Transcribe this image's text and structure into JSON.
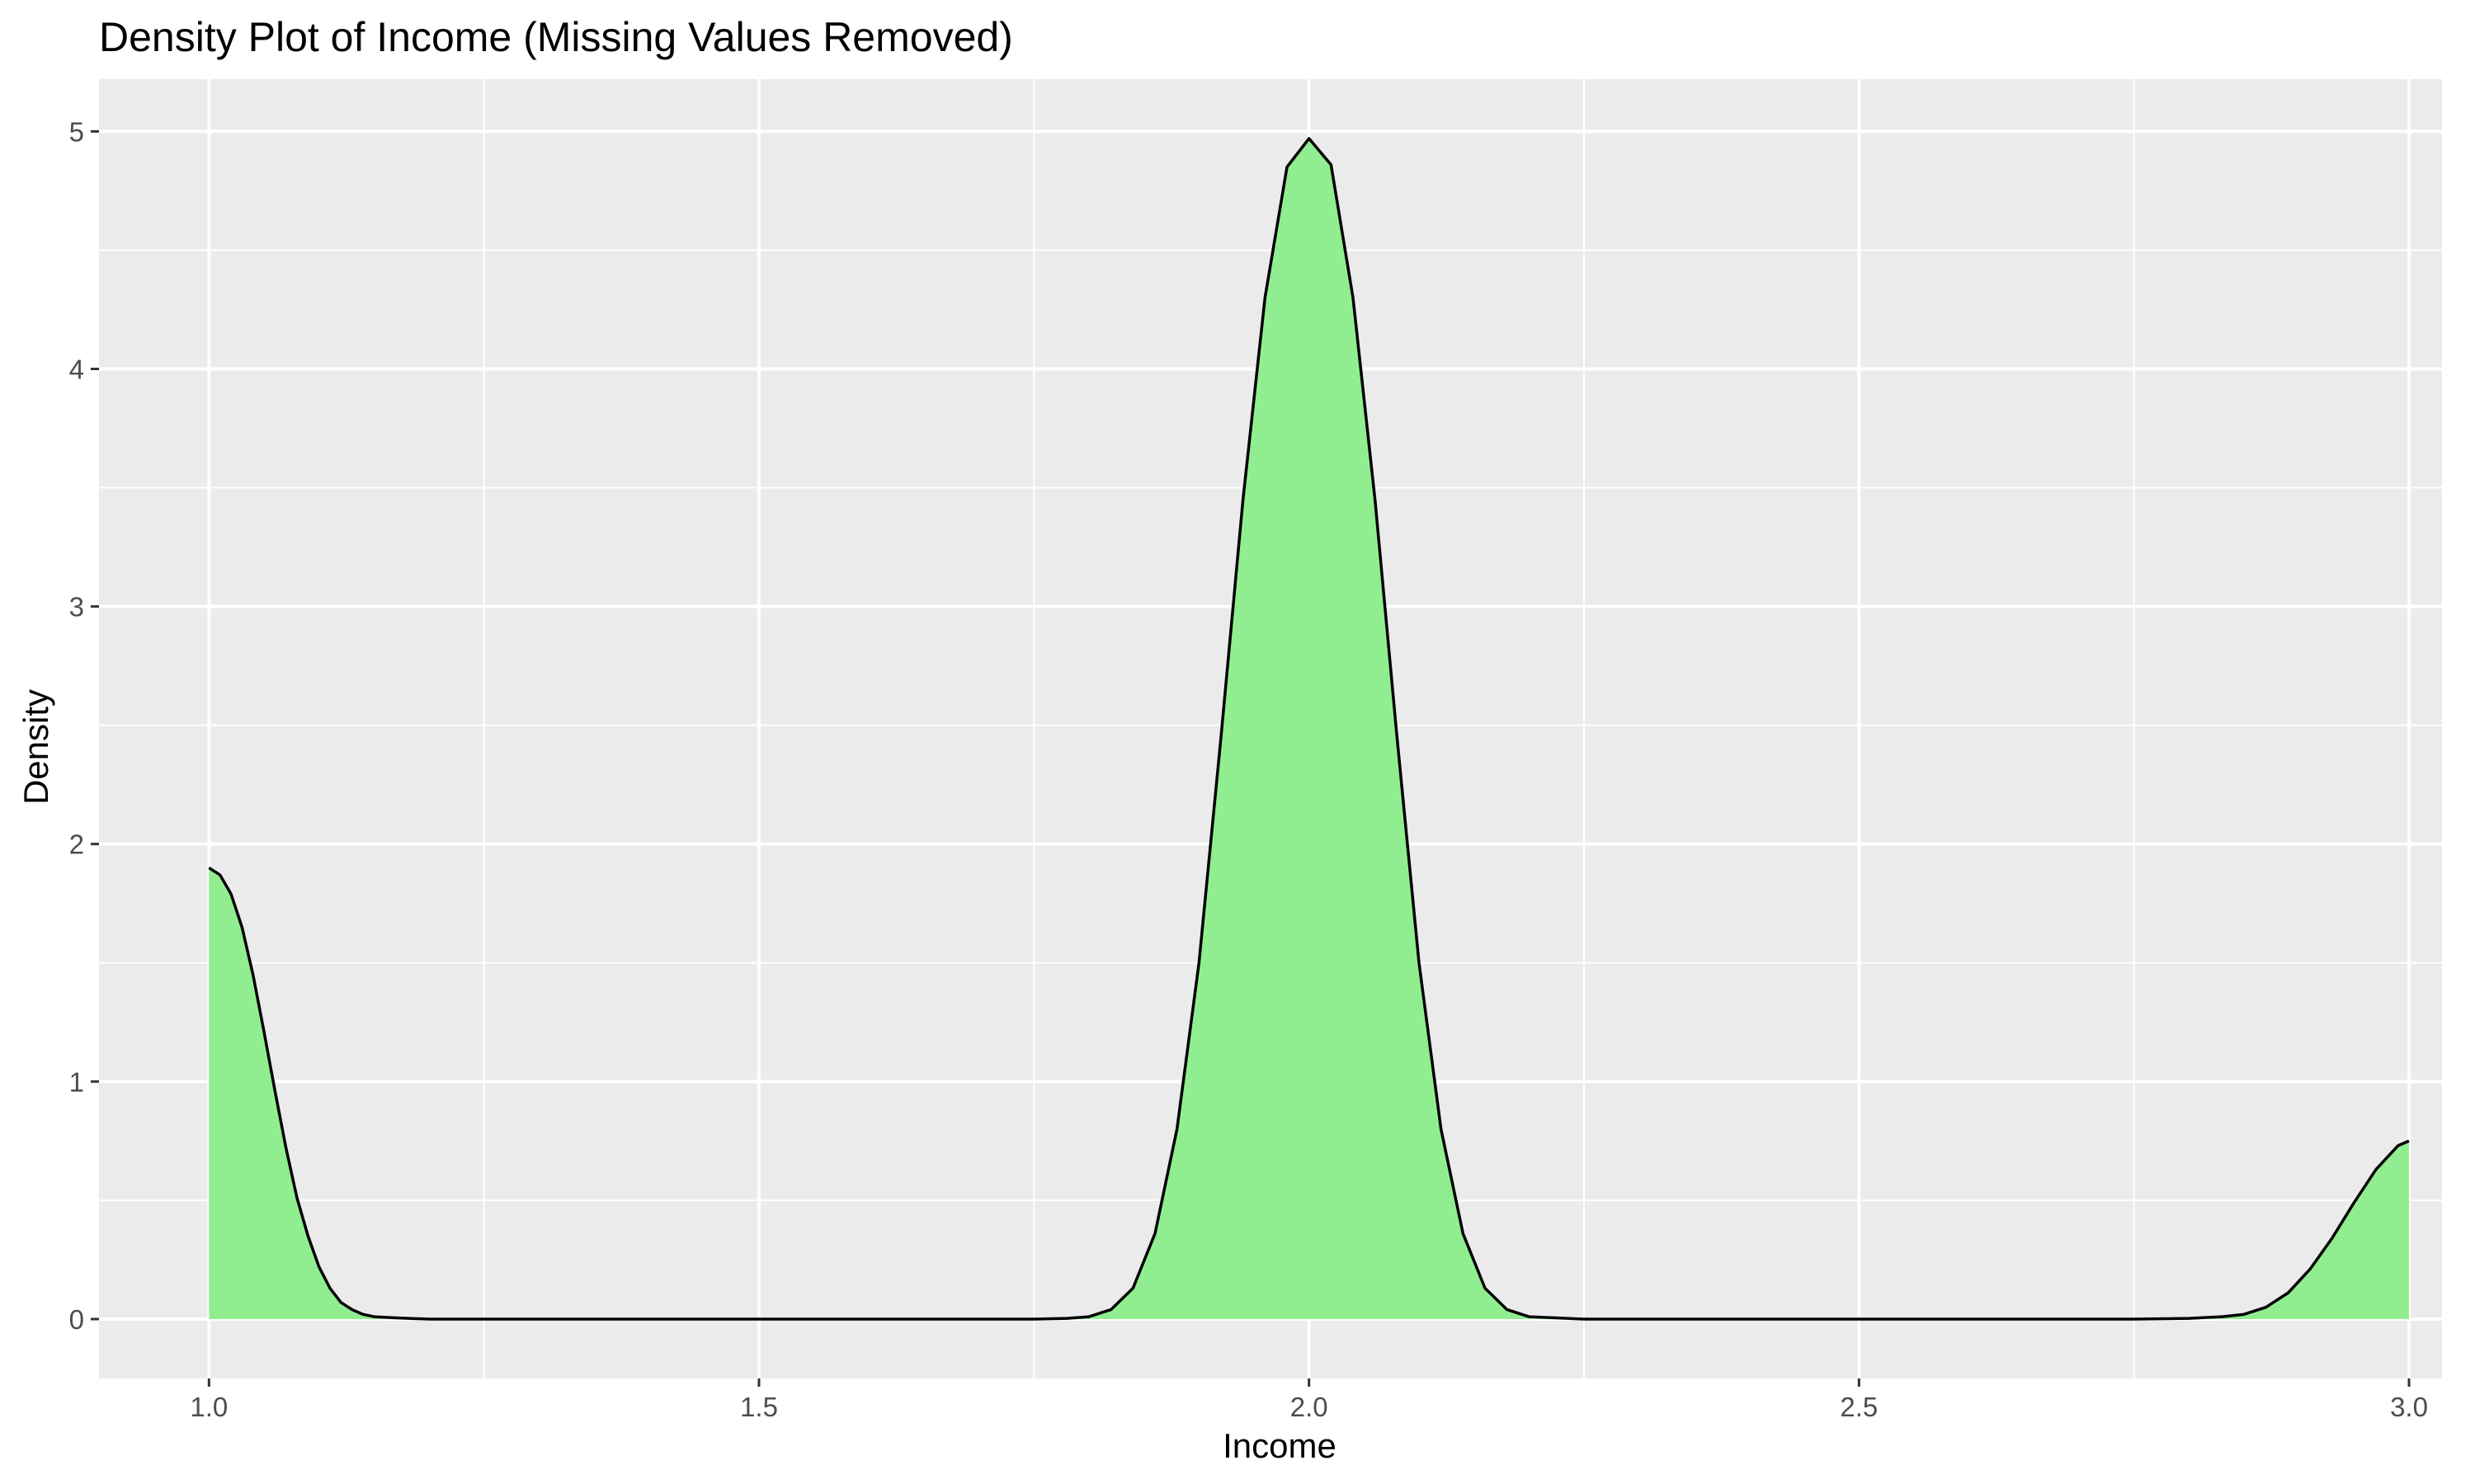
{
  "colors": {
    "panel_background": "#EBEBEB",
    "grid_line": "#FFFFFF",
    "fill": "#90EE90",
    "outline": "#000000",
    "tick": "#333333"
  },
  "chart_data": {
    "type": "area",
    "title": "Density Plot of Income (Missing Values Removed)",
    "xlabel": "Income",
    "ylabel": "Density",
    "xlim": [
      0.9,
      3.03
    ],
    "ylim": [
      -0.25,
      5.22
    ],
    "grid": true,
    "legend": "none",
    "x_ticks": [
      {
        "value": 1.0,
        "label": "1.0"
      },
      {
        "value": 1.5,
        "label": "1.5"
      },
      {
        "value": 2.0,
        "label": "2.0"
      },
      {
        "value": 2.5,
        "label": "2.5"
      },
      {
        "value": 3.0,
        "label": "3.0"
      }
    ],
    "y_ticks": [
      {
        "value": 0,
        "label": "0"
      },
      {
        "value": 1,
        "label": "1"
      },
      {
        "value": 2,
        "label": "2"
      },
      {
        "value": 3,
        "label": "3"
      },
      {
        "value": 4,
        "label": "4"
      },
      {
        "value": 5,
        "label": "5"
      }
    ],
    "x_minor_ticks": [
      1.25,
      1.75,
      2.25,
      2.75
    ],
    "y_minor_ticks": [
      0.5,
      1.5,
      2.5,
      3.5,
      4.5
    ],
    "series": [
      {
        "x": [
          1.0,
          1.01,
          1.02,
          1.03,
          1.04,
          1.05,
          1.06,
          1.07,
          1.08,
          1.09,
          1.1,
          1.11,
          1.12,
          1.13,
          1.14,
          1.15,
          1.17,
          1.2,
          1.3,
          1.5,
          1.7,
          1.75,
          1.78,
          1.8,
          1.82,
          1.84,
          1.86,
          1.88,
          1.9,
          1.92,
          1.94,
          1.96,
          1.98,
          2.0,
          2.02,
          2.04,
          2.06,
          2.08,
          2.1,
          2.12,
          2.14,
          2.16,
          2.18,
          2.2,
          2.25,
          2.5,
          2.75,
          2.8,
          2.83,
          2.85,
          2.87,
          2.89,
          2.91,
          2.93,
          2.95,
          2.97,
          2.99,
          3.0
        ],
        "y": [
          1.9,
          1.87,
          1.79,
          1.65,
          1.45,
          1.21,
          0.96,
          0.72,
          0.51,
          0.35,
          0.22,
          0.13,
          0.07,
          0.04,
          0.02,
          0.01,
          0.005,
          0.0,
          0.0,
          0.0,
          0.0,
          0.0,
          0.003,
          0.01,
          0.04,
          0.13,
          0.36,
          0.8,
          1.5,
          2.45,
          3.45,
          4.3,
          4.85,
          4.97,
          4.86,
          4.3,
          3.45,
          2.45,
          1.5,
          0.8,
          0.36,
          0.13,
          0.04,
          0.01,
          0.0,
          0.0,
          0.0,
          0.003,
          0.01,
          0.02,
          0.05,
          0.11,
          0.21,
          0.34,
          0.49,
          0.63,
          0.73,
          0.75
        ]
      }
    ]
  }
}
